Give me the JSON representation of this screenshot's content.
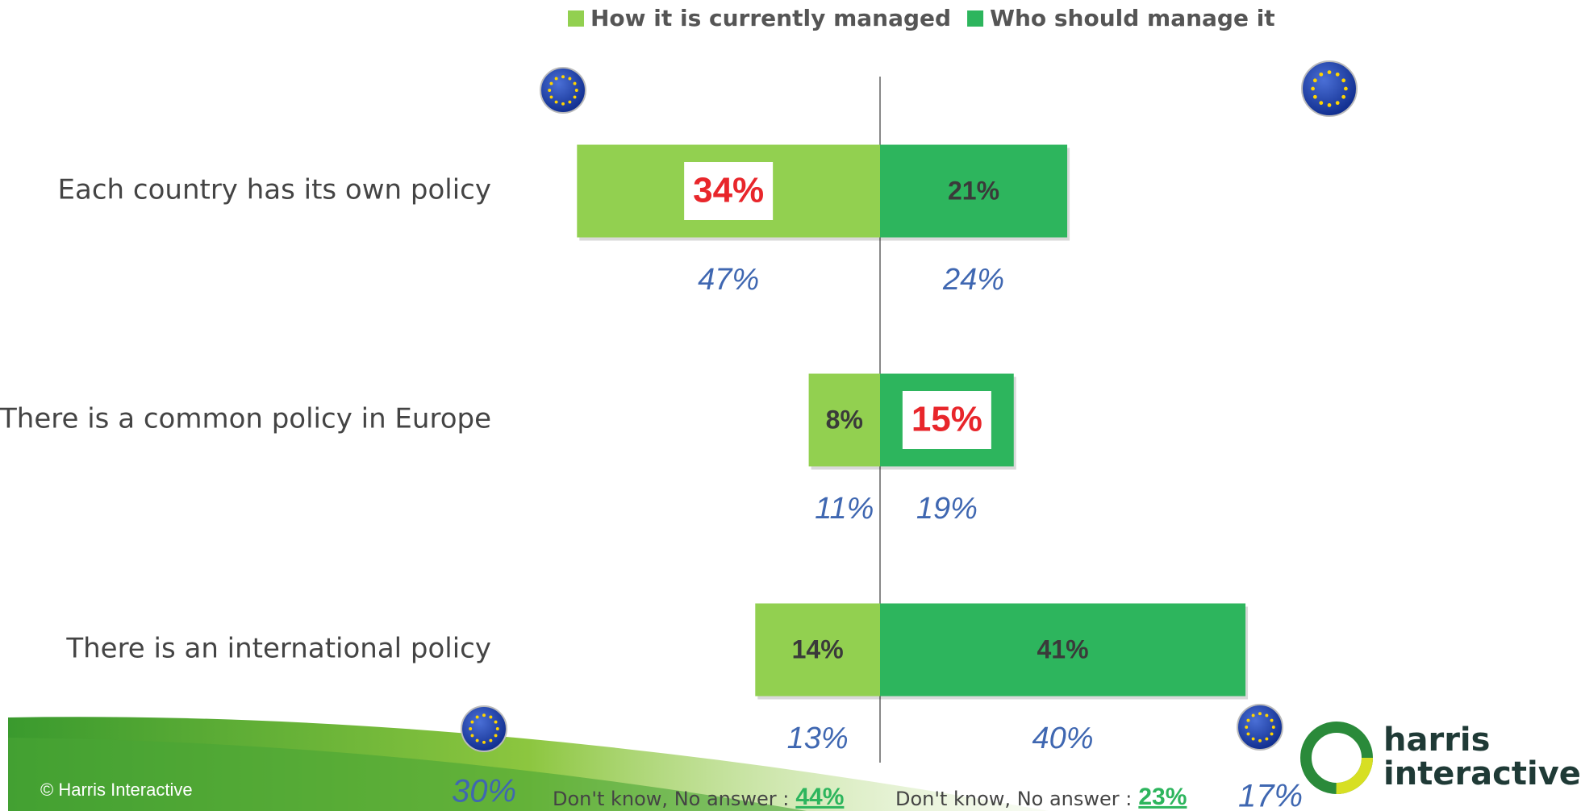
{
  "chart_data": {
    "type": "diverging_bar",
    "categories": [
      "Each country has its own policy",
      "There is a common policy in Europe",
      "There is an international policy"
    ],
    "series": [
      {
        "name": "How it is currently managed",
        "color": "#92d050",
        "side": "left",
        "values": [
          34,
          8,
          14
        ],
        "value_labels": [
          "34%",
          "8%",
          "14%"
        ],
        "highlight": [
          0
        ],
        "comparison_values": [
          47,
          11,
          13
        ],
        "comparison_labels": [
          "47%",
          "11%",
          "13%"
        ]
      },
      {
        "name": "Who should manage it",
        "color": "#2db55d",
        "side": "right",
        "values": [
          21,
          15,
          41
        ],
        "value_labels": [
          "21%",
          "15%",
          "41%"
        ],
        "highlight": [
          1
        ],
        "comparison_values": [
          24,
          19,
          40
        ],
        "comparison_labels": [
          "24%",
          "19%",
          "40%"
        ]
      }
    ],
    "highlight_color": "#e8262b",
    "comparison_color": "#3f67b1",
    "no_answer": {
      "label": "Don't know, No answer :",
      "values": [
        44,
        23
      ],
      "value_labels": [
        "44%",
        "23%"
      ],
      "comparison_values": [
        30,
        17
      ],
      "comparison_labels": [
        "30%",
        "17%"
      ]
    }
  },
  "footer": {
    "copyright": "© Harris Interactive",
    "logo_top": "harris",
    "logo_bottom": "interactive"
  }
}
